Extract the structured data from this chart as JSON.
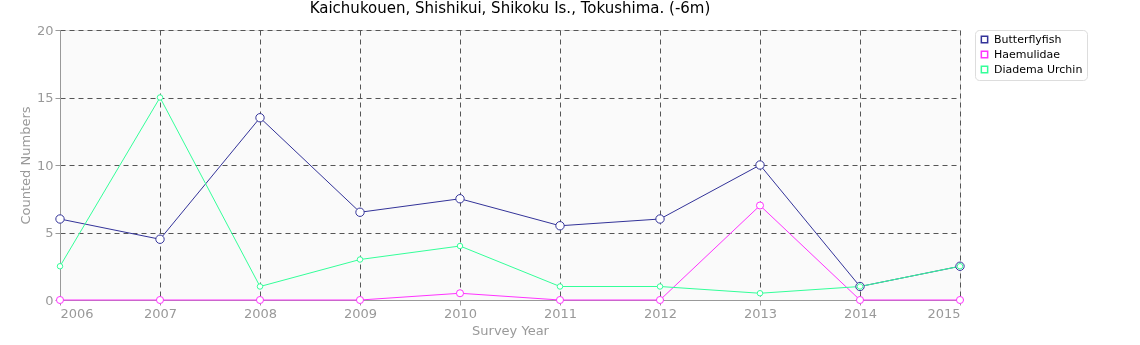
{
  "chart_data": {
    "type": "line",
    "title": "Kaichukouen, Shishikui, Shikoku Is., Tokushima. (-6m)",
    "xlabel": "Survey Year",
    "ylabel": "Counted Numbers",
    "x": [
      2006,
      2007,
      2008,
      2009,
      2010,
      2011,
      2012,
      2013,
      2014,
      2015
    ],
    "series": [
      {
        "name": "Butterflyfish",
        "color": "#333399",
        "values": [
          6,
          4.5,
          13.5,
          6.5,
          7.5,
          5.5,
          6,
          10,
          1,
          2.5
        ]
      },
      {
        "name": "Haemulidae",
        "color": "#ff33ff",
        "values": [
          0,
          0,
          0,
          0,
          0.5,
          0,
          0,
          7,
          0,
          0
        ]
      },
      {
        "name": "Diadema Urchin",
        "color": "#33ff99",
        "values": [
          2.5,
          15,
          1,
          3,
          4,
          1,
          1,
          0.5,
          1,
          2.5
        ]
      }
    ],
    "xlim": [
      2006,
      2015
    ],
    "xticks": [
      2006,
      2007,
      2008,
      2009,
      2010,
      2011,
      2012,
      2013,
      2014,
      2015
    ],
    "ylim": [
      0,
      20
    ],
    "yticks": [
      0,
      5,
      10,
      15,
      20
    ],
    "grid": true,
    "legend": "top right",
    "marker": "circle"
  }
}
